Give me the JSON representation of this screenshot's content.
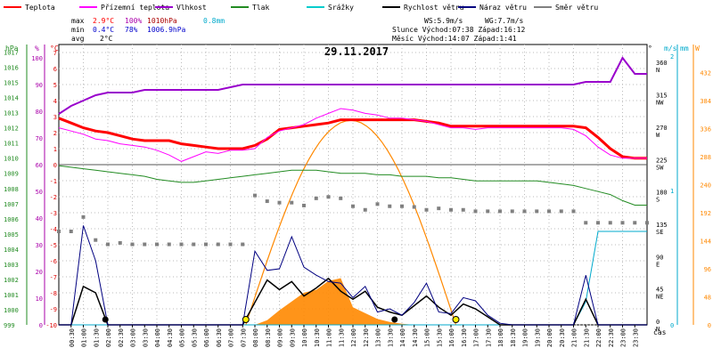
{
  "chart_data": {
    "type": "line",
    "title": "29.11.2017",
    "xlabel": "čas",
    "x_hours": [
      0,
      0.5,
      1,
      1.5,
      2,
      2.5,
      3,
      3.5,
      4,
      4.5,
      5,
      5.5,
      6,
      6.5,
      7,
      7.5,
      8,
      8.5,
      9,
      9.5,
      10,
      10.5,
      11,
      11.5,
      12,
      12.5,
      13,
      13.5,
      14,
      14.5,
      15,
      15.5,
      16,
      16.5,
      17,
      17.5,
      18,
      18.5,
      19,
      19.5,
      20,
      20.5,
      21,
      21.5,
      22,
      22.5,
      23,
      23.5,
      24
    ],
    "xticks": [
      "00:30",
      "01:00",
      "01:30",
      "02:00",
      "02:30",
      "03:00",
      "03:30",
      "04:00",
      "04:30",
      "05:00",
      "05:30",
      "06:00",
      "06:30",
      "07:00",
      "07:30",
      "08:00",
      "08:30",
      "09:00",
      "09:30",
      "10:00",
      "10:30",
      "11:00",
      "11:30",
      "12:00",
      "12:30",
      "13:00",
      "13:30",
      "14:00",
      "14:30",
      "15:00",
      "15:30",
      "16:00",
      "16:30",
      "17:00",
      "17:30",
      "18:00",
      "18:30",
      "19:00",
      "19:30",
      "20:00",
      "20:30",
      "21:00",
      "21:30",
      "22:00",
      "22:30",
      "23:00",
      "23:30"
    ],
    "axes": {
      "hpa": {
        "label": "hPa",
        "ticks": [
          "1017",
          "1016",
          "1015",
          "1014",
          "1013",
          "1012",
          "1011",
          "1010",
          "1009",
          "1008",
          "1007",
          "1006",
          "1005",
          "1004",
          "1003",
          "1002",
          "1001",
          "1000",
          "999"
        ],
        "color": "#228b22"
      },
      "humidity": {
        "label": "%",
        "ticks": [
          "100",
          "90",
          "80",
          "70",
          "60",
          "50",
          "40",
          "30",
          "20",
          "10",
          "0"
        ],
        "color": "#aa00aa"
      },
      "temp": {
        "label": "°C",
        "ticks": [
          "7",
          "6",
          "5",
          "4",
          "3",
          "2",
          "1",
          "0",
          "-1",
          "-2",
          "-3",
          "-4",
          "-5",
          "-6",
          "-7",
          "-8",
          "-9",
          "-10"
        ],
        "color": "#dd0000"
      },
      "direction": {
        "label": "°",
        "ticks": [
          {
            "v": "360",
            "d": "N"
          },
          {
            "v": "315",
            "d": "NW"
          },
          {
            "v": "270",
            "d": "W"
          },
          {
            "v": "225",
            "d": "SW"
          },
          {
            "v": "180",
            "d": "S"
          },
          {
            "v": "135",
            "d": "SE"
          },
          {
            "v": "90",
            "d": "E"
          },
          {
            "v": "45",
            "d": "NE"
          },
          {
            "v": "0",
            "d": "N"
          }
        ]
      },
      "wind": {
        "label": "m/s",
        "ticks": [
          "2",
          "1",
          "0"
        ],
        "color": "#00aacc"
      },
      "precip": {
        "label": "mm",
        "ticks": [
          "2",
          "1",
          "0"
        ],
        "color": "#00aacc"
      },
      "solar": {
        "label": "W",
        "ticks": [
          "432",
          "384",
          "336",
          "288",
          "240",
          "192",
          "144",
          "96",
          "48",
          "0"
        ],
        "color": "#ff8800"
      }
    },
    "series": [
      {
        "name": "Teplota",
        "color": "#ff0000",
        "axis": "temp",
        "values": [
          2.9,
          2.6,
          2.3,
          2.1,
          2.0,
          1.8,
          1.6,
          1.5,
          1.5,
          1.5,
          1.3,
          1.2,
          1.1,
          1.0,
          1.0,
          1.0,
          1.2,
          1.6,
          2.2,
          2.3,
          2.4,
          2.5,
          2.6,
          2.8,
          2.8,
          2.8,
          2.8,
          2.8,
          2.8,
          2.8,
          2.7,
          2.6,
          2.4,
          2.4,
          2.4,
          2.4,
          2.4,
          2.4,
          2.4,
          2.4,
          2.4,
          2.4,
          2.4,
          2.3,
          1.7,
          1.0,
          0.5,
          0.4,
          0.4
        ]
      },
      {
        "name": "Přízemní teplota",
        "color": "#ff00ff",
        "axis": "temp",
        "values": [
          2.3,
          2.1,
          1.9,
          1.6,
          1.5,
          1.3,
          1.2,
          1.1,
          0.9,
          0.6,
          0.2,
          0.5,
          0.8,
          0.7,
          0.9,
          0.9,
          1.0,
          1.7,
          2.1,
          2.3,
          2.5,
          2.9,
          3.2,
          3.5,
          3.4,
          3.2,
          3.1,
          2.9,
          2.9,
          2.8,
          2.7,
          2.5,
          2.3,
          2.3,
          2.2,
          2.3,
          2.3,
          2.3,
          2.3,
          2.3,
          2.3,
          2.3,
          2.2,
          1.8,
          1.1,
          0.6,
          0.4,
          0.4,
          0.4
        ]
      },
      {
        "name": "Vlhkost",
        "color": "#9900cc",
        "axis": "humidity",
        "values": [
          79,
          82,
          84,
          86,
          87,
          87,
          87,
          88,
          88,
          88,
          88,
          88,
          88,
          88,
          89,
          90,
          90,
          90,
          90,
          90,
          90,
          90,
          90,
          90,
          90,
          90,
          90,
          90,
          90,
          90,
          90,
          90,
          90,
          90,
          90,
          90,
          90,
          90,
          90,
          90,
          90,
          90,
          90,
          91,
          91,
          91,
          100,
          94,
          94
        ]
      },
      {
        "name": "Tlak",
        "color": "#228b22",
        "axis": "hpa",
        "values": [
          1009.5,
          1009.4,
          1009.3,
          1009.2,
          1009.1,
          1009.0,
          1008.9,
          1008.8,
          1008.6,
          1008.5,
          1008.4,
          1008.4,
          1008.5,
          1008.6,
          1008.7,
          1008.8,
          1008.9,
          1009.0,
          1009.1,
          1009.2,
          1009.2,
          1009.2,
          1009.1,
          1009.0,
          1009.0,
          1009.0,
          1008.9,
          1008.9,
          1008.8,
          1008.8,
          1008.8,
          1008.7,
          1008.7,
          1008.6,
          1008.5,
          1008.5,
          1008.5,
          1008.5,
          1008.5,
          1008.5,
          1008.4,
          1008.3,
          1008.2,
          1008.0,
          1007.8,
          1007.6,
          1007.2,
          1006.9,
          1006.9
        ]
      },
      {
        "name": "Srážky",
        "color": "#00aacc",
        "axis": "precip",
        "values": [
          0,
          0,
          0,
          0,
          0,
          0,
          0,
          0,
          0,
          0,
          0,
          0,
          0,
          0,
          0,
          0,
          0,
          0,
          0,
          0,
          0,
          0,
          0,
          0,
          0,
          0,
          0,
          0,
          0,
          0,
          0,
          0,
          0,
          0,
          0,
          0,
          0,
          0,
          0,
          0,
          0,
          0,
          0,
          0.2,
          0.8,
          0.8,
          0.8,
          0.8,
          0.8
        ]
      },
      {
        "name": "Rychlost větru",
        "color": "#000000",
        "axis": "temp",
        "values": [
          -10,
          -10,
          -7.6,
          -8,
          -10,
          -10,
          -10,
          -10,
          -10,
          -10,
          -10,
          -10,
          -10,
          -10,
          -10,
          -10,
          -8.6,
          -7.2,
          -7.8,
          -7.3,
          -8.2,
          -7.7,
          -7.1,
          -7.9,
          -8.4,
          -7.9,
          -8.9,
          -9.2,
          -9.4,
          -8.8,
          -8.2,
          -8.9,
          -9.4,
          -8.7,
          -9,
          -9.5,
          -10,
          -10,
          -10,
          -10,
          -10,
          -10,
          -10,
          -8.4,
          -10,
          -10,
          -10,
          -10,
          -10
        ]
      },
      {
        "name": "Náraz větru",
        "color": "#000080",
        "axis": "temp",
        "values": [
          -10,
          -10,
          -3.8,
          -6,
          -10,
          -10,
          -10,
          -10,
          -10,
          -10,
          -10,
          -10,
          -10,
          -10,
          -10,
          -10,
          -5.4,
          -6.6,
          -6.5,
          -4.5,
          -6.4,
          -6.9,
          -7.3,
          -7.4,
          -8.3,
          -7.6,
          -9.2,
          -9,
          -9.4,
          -8.6,
          -7.4,
          -9.2,
          -9.3,
          -8.3,
          -8.5,
          -9.4,
          -9.9,
          -10,
          -10,
          -10,
          -10,
          -10,
          -10,
          -6.9,
          -10,
          -10,
          -10,
          -10,
          -10
        ]
      },
      {
        "name": "Směr větru",
        "color": "#808080",
        "axis": "direction",
        "values": [
          130,
          130,
          150,
          118,
          112,
          114,
          112,
          112,
          112,
          112,
          112,
          112,
          112,
          112,
          112,
          112,
          180,
          172,
          170,
          170,
          166,
          176,
          178,
          176,
          165,
          160,
          168,
          165,
          165,
          164,
          160,
          162,
          160,
          160,
          158,
          158,
          158,
          158,
          158,
          158,
          158,
          158,
          158,
          142,
          142,
          142,
          142,
          142,
          142
        ]
      },
      {
        "name": "Sluneční záření",
        "color": "#ff8800",
        "axis": "solar",
        "values": [
          0,
          0,
          0,
          0,
          0,
          0,
          0,
          0,
          0,
          0,
          0,
          0,
          0,
          0,
          0,
          0,
          0,
          8,
          25,
          40,
          55,
          60,
          75,
          80,
          30,
          20,
          10,
          5,
          2,
          0,
          0,
          0,
          0,
          0,
          0,
          0,
          0,
          0,
          0,
          0,
          0,
          0,
          0,
          0,
          0,
          0,
          0,
          0,
          0
        ]
      }
    ],
    "sun_curve": {
      "rise": 7.63,
      "set": 16.2,
      "peak_w": 350
    },
    "markers": {
      "yellow": [
        7.63,
        16.2
      ],
      "black": [
        1.9,
        13.7
      ]
    },
    "ylim_temp": [
      -10,
      7.5
    ]
  },
  "legend": [
    {
      "label": "Teplota",
      "color": "#ff0000"
    },
    {
      "label": "Přízemní teplota",
      "color": "#ff00ff"
    },
    {
      "label": "Vlhkost",
      "color": "#9900cc"
    },
    {
      "label": "Tlak",
      "color": "#228b22"
    },
    {
      "label": "Srážky",
      "color": "#00cccc"
    },
    {
      "label": "Rychlost větru",
      "color": "#000000"
    },
    {
      "label": "Náraz větru",
      "color": "#000080"
    },
    {
      "label": "Směr větru",
      "color": "#808080"
    }
  ],
  "stats": {
    "max_label": "max",
    "max_temp": "2.9°C",
    "max_hum": "100%",
    "max_press": "1010hPa",
    "max_rain": "0.8mm",
    "min_label": "min",
    "min_temp": "0.4°C",
    "min_hum": "78%",
    "min_press": "1006.9hPa",
    "avg_label": "avg",
    "avg_temp": "2°C"
  },
  "info": {
    "ws": "WS:5.9m/s",
    "wg": "WG:7.7m/s",
    "sun": "Slunce Východ:07:38  Západ:16:12",
    "moon": "Měsíc  Východ:14:07  Západ:1:41"
  }
}
